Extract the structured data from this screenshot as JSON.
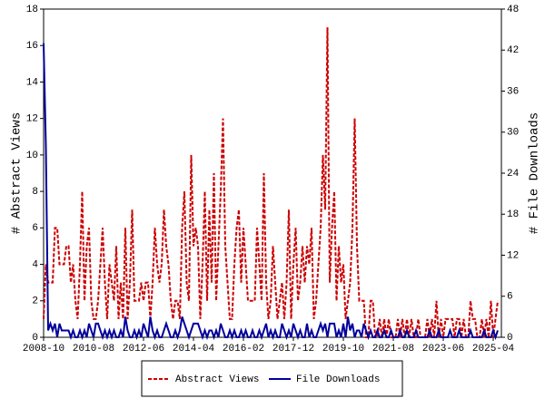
{
  "chart_data": {
    "type": "line",
    "y_label": "# Abstract Views",
    "y2_label": "# File Downloads",
    "categories": [
      "2008-10",
      null,
      null,
      null,
      null,
      null,
      null,
      null,
      null,
      null,
      null,
      null,
      null,
      null,
      null,
      null,
      null,
      null,
      null,
      null,
      null,
      null,
      "2010-08",
      null,
      null,
      null,
      null,
      null,
      null,
      null,
      null,
      null,
      null,
      null,
      null,
      null,
      null,
      null,
      null,
      null,
      null,
      null,
      null,
      null,
      "2012-06",
      null,
      null,
      null,
      null,
      null,
      null,
      null,
      null,
      null,
      null,
      null,
      null,
      null,
      null,
      null,
      null,
      null,
      null,
      null,
      null,
      null,
      "2014-04",
      null,
      null,
      null,
      null,
      null,
      null,
      null,
      null,
      null,
      null,
      null,
      null,
      null,
      null,
      null,
      null,
      null,
      null,
      null,
      null,
      null,
      "2016-02",
      null,
      null,
      null,
      null,
      null,
      null,
      null,
      null,
      null,
      null,
      null,
      null,
      null,
      null,
      null,
      null,
      null,
      null,
      null,
      null,
      null,
      "2017-12",
      null,
      null,
      null,
      null,
      null,
      null,
      null,
      null,
      null,
      null,
      null,
      null,
      null,
      null,
      null,
      null,
      null,
      null,
      null,
      null,
      null,
      "2019-10",
      null,
      null,
      null,
      null,
      null,
      null,
      null,
      null,
      null,
      null,
      null,
      null,
      null,
      null,
      null,
      null,
      null,
      null,
      null,
      null,
      null,
      "2021-08",
      null,
      null,
      null,
      null,
      null,
      null,
      null,
      null,
      null,
      null,
      null,
      null,
      null,
      null,
      null,
      null,
      null,
      null,
      null,
      null,
      null,
      "2023-06",
      null,
      null,
      null,
      null,
      null,
      null,
      null,
      null,
      null,
      null,
      null,
      null,
      null,
      null,
      null,
      null,
      null,
      null,
      null,
      null,
      null,
      "2025-04",
      null,
      null
    ],
    "series": [
      {
        "name": "Abstract Views",
        "color": "#cc0000",
        "dash": true,
        "axis": "y",
        "values": [
          1,
          4,
          3,
          3,
          3,
          6,
          6,
          4,
          4,
          4,
          5,
          5,
          3,
          4,
          2,
          1,
          4,
          8,
          2,
          5,
          6,
          2,
          1,
          1,
          2,
          4,
          6,
          3,
          1,
          4,
          3,
          2,
          5,
          1,
          3,
          1,
          6,
          1,
          3,
          7,
          2,
          2,
          2,
          3,
          2,
          3,
          3,
          1,
          3,
          6,
          4,
          3,
          4,
          7,
          5,
          4,
          2,
          1,
          2,
          2,
          1,
          6,
          8,
          3,
          2,
          10,
          5,
          6,
          5,
          1,
          4,
          8,
          2,
          7,
          3,
          9,
          2,
          5,
          8,
          12,
          5,
          3,
          1,
          1,
          4,
          6,
          7,
          3,
          6,
          4,
          2,
          2,
          2,
          2,
          6,
          4,
          2,
          9,
          3,
          1,
          2,
          5,
          3,
          1,
          2,
          3,
          1,
          3,
          7,
          1,
          4,
          6,
          2,
          3,
          5,
          3,
          5,
          4,
          6,
          1,
          2,
          4,
          6,
          10,
          7,
          17,
          3,
          6,
          8,
          2,
          5,
          3,
          4,
          1,
          2,
          3,
          6,
          12,
          5,
          2,
          2,
          2,
          0,
          0,
          2,
          2,
          0,
          0,
          1,
          0,
          1,
          0,
          1,
          0,
          0,
          0,
          1,
          0,
          1,
          0,
          1,
          0,
          1,
          0,
          0,
          1,
          0,
          0,
          0,
          1,
          0,
          1,
          0,
          2,
          0,
          1,
          0,
          1,
          1,
          1,
          1,
          0,
          1,
          1,
          0,
          1,
          0,
          0,
          2,
          1,
          1,
          0,
          0,
          1,
          0,
          1,
          0,
          2,
          0,
          1,
          2
        ]
      },
      {
        "name": "File Downloads",
        "color": "#00009c",
        "dash": false,
        "axis": "y2",
        "values": [
          43,
          28,
          1,
          2,
          1,
          2,
          0,
          2,
          1,
          1,
          1,
          1,
          0,
          1,
          0,
          0,
          1,
          0,
          1,
          0,
          2,
          1,
          0,
          2,
          2,
          1,
          0,
          1,
          0,
          1,
          0,
          1,
          0,
          0,
          1,
          0,
          3,
          1,
          0,
          0,
          1,
          0,
          1,
          0,
          2,
          1,
          0,
          3,
          1,
          0,
          1,
          0,
          0,
          1,
          2,
          1,
          0,
          0,
          1,
          0,
          1,
          3,
          2,
          1,
          0,
          1,
          2,
          2,
          2,
          1,
          0,
          1,
          0,
          1,
          1,
          0,
          1,
          0,
          2,
          1,
          0,
          0,
          1,
          0,
          1,
          0,
          0,
          1,
          0,
          1,
          0,
          0,
          1,
          0,
          0,
          1,
          0,
          1,
          2,
          0,
          1,
          0,
          1,
          0,
          0,
          2,
          1,
          0,
          1,
          0,
          2,
          1,
          0,
          1,
          0,
          0,
          2,
          0,
          1,
          0,
          0,
          1,
          2,
          1,
          2,
          0,
          2,
          2,
          2,
          0,
          1,
          0,
          2,
          0,
          3,
          1,
          2,
          0,
          1,
          1,
          0,
          2,
          1,
          0,
          1,
          0,
          0,
          1,
          0,
          0,
          1,
          0,
          0,
          1,
          0,
          0,
          0,
          1,
          0,
          0,
          1,
          0,
          0,
          0,
          1,
          0,
          0,
          0,
          0,
          0,
          1,
          0,
          0,
          0,
          1,
          0,
          0,
          0,
          0,
          1,
          0,
          0,
          0,
          1,
          0,
          0,
          0,
          0,
          1,
          0,
          0,
          0,
          0,
          0,
          1,
          0,
          0,
          0,
          1,
          0,
          1
        ]
      }
    ],
    "ylim": [
      0,
      18
    ],
    "yticks": [
      0,
      2,
      4,
      6,
      8,
      10,
      12,
      14,
      16,
      18
    ],
    "y2lim": [
      0,
      48
    ],
    "y2ticks": [
      0,
      6,
      12,
      18,
      24,
      30,
      36,
      42,
      48
    ],
    "legend": "bottom"
  }
}
